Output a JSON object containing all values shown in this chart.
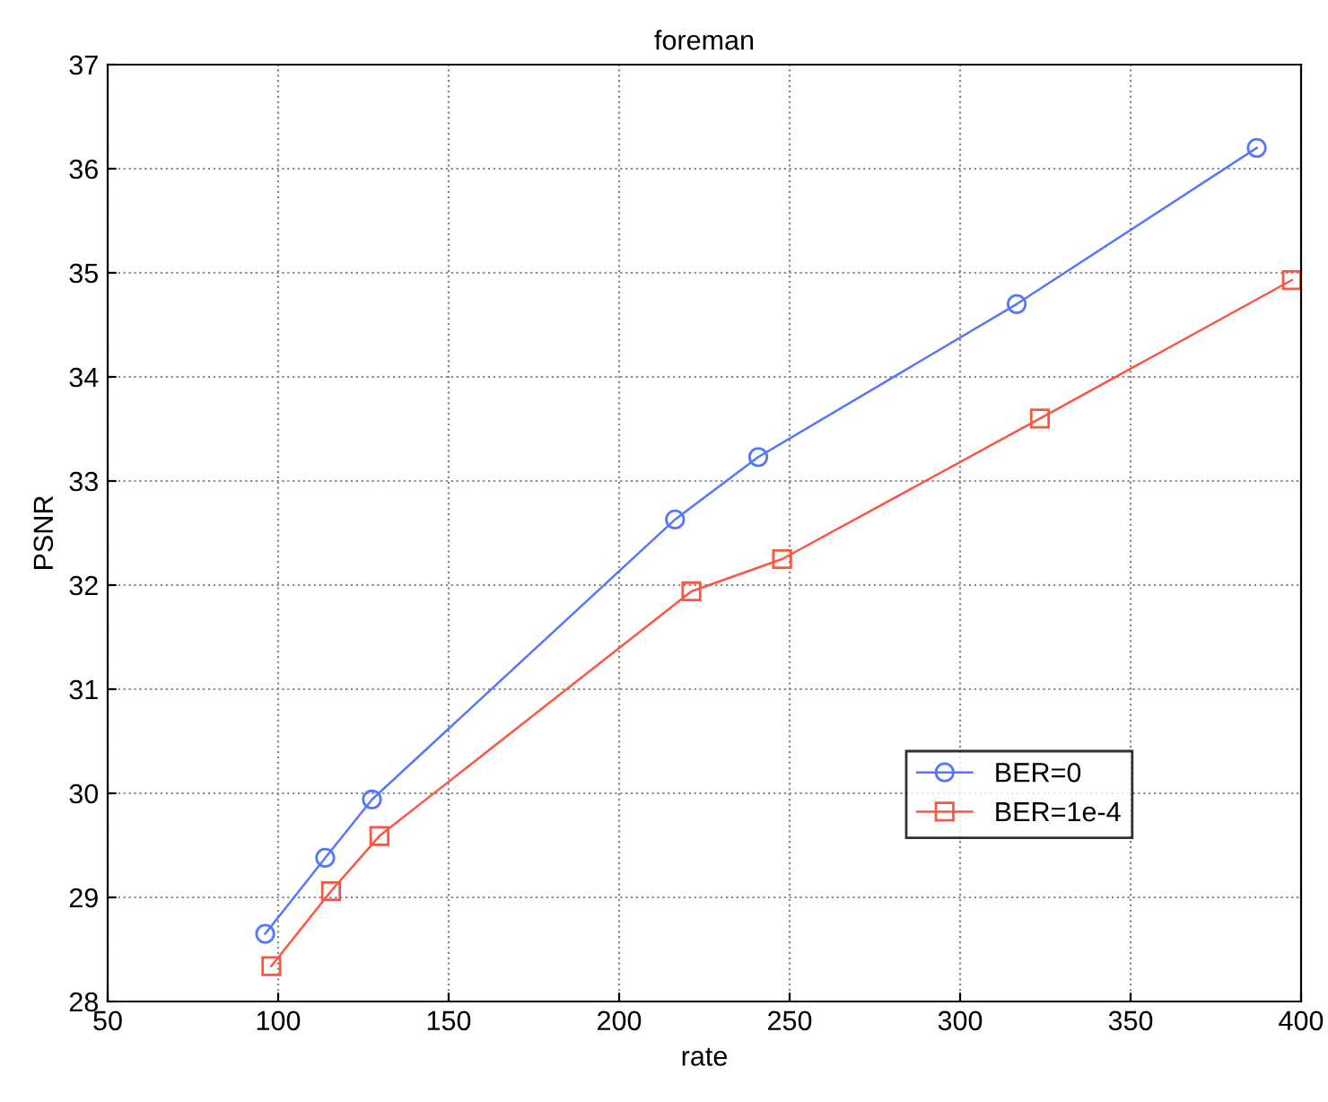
{
  "chart_data": {
    "type": "line",
    "title": "foreman",
    "xlabel": "rate",
    "ylabel": "PSNR",
    "xlim": [
      50,
      400
    ],
    "xticks": [
      50,
      100,
      150,
      200,
      250,
      300,
      350,
      400
    ],
    "ylim": [
      28,
      37
    ],
    "yticks": [
      28,
      29,
      30,
      31,
      32,
      33,
      34,
      35,
      36,
      37
    ],
    "grid": true,
    "legend": "lower right",
    "line_style": "solid",
    "series": [
      {
        "name": "BER=0",
        "color": "#5577ff",
        "marker": "circle",
        "x": [
          96.2,
          113.8,
          127.5,
          216.4,
          240.8,
          316.6,
          387
        ],
        "values": [
          28.65,
          29.38,
          29.94,
          32.63,
          33.23,
          34.7,
          36.2
        ]
      },
      {
        "name": "BER=1e-4",
        "color": "#ff5540",
        "marker": "square",
        "x": [
          98,
          115.5,
          129.7,
          221.2,
          247.8,
          323.4,
          397.3
        ],
        "values": [
          28.34,
          29.06,
          29.59,
          31.94,
          32.25,
          33.6,
          34.93
        ]
      }
    ]
  }
}
